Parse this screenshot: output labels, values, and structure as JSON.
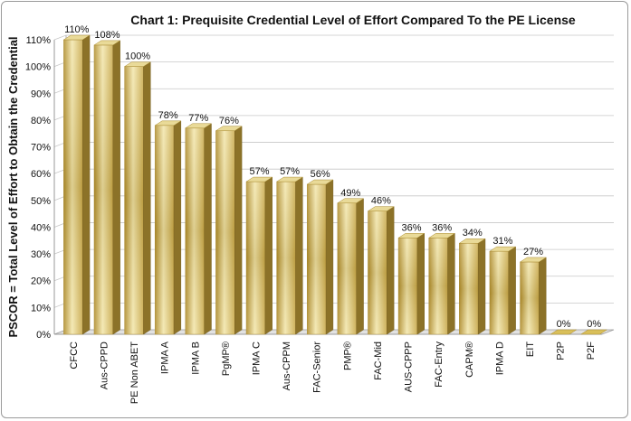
{
  "chart_data": {
    "type": "bar",
    "title": "Chart 1: Prequisite Credential Level of Effort Compared  To the PE License",
    "ylabel": "PSCOR = Total Level of Effort to Obtain the Credential",
    "xlabel": "",
    "ylim": [
      0,
      110
    ],
    "yticks": [
      "0%",
      "10%",
      "20%",
      "30%",
      "40%",
      "50%",
      "60%",
      "70%",
      "80%",
      "90%",
      "100%",
      "110%"
    ],
    "categories": [
      "CFCC",
      "Aus-CPPD",
      "PE Non ABET",
      "IPMA A",
      "IPMA B",
      "PgMP®",
      "IPMA C",
      "Aus-CPPM",
      "FAC-Senior",
      "PMP®",
      "FAC-Mid",
      "AUS-CPPP",
      "FAC-Entry",
      "CAPM®",
      "IPMA D",
      "EIT",
      "P2P",
      "P2F"
    ],
    "values": [
      110,
      108,
      100,
      78,
      77,
      76,
      57,
      57,
      56,
      49,
      46,
      36,
      36,
      34,
      31,
      27,
      0,
      0
    ],
    "data_labels": [
      "110%",
      "108%",
      "100%",
      "78%",
      "77%",
      "76%",
      "57%",
      "57%",
      "56%",
      "49%",
      "46%",
      "36%",
      "36%",
      "34%",
      "31%",
      "27%",
      "0%",
      "0%"
    ],
    "grid": true,
    "legend": "none",
    "colors": {
      "bar_light": "#f3e7ad",
      "bar_mid": "#d9bf5a",
      "bar_dark": "#b08d2c",
      "bar_side": "#8c7228",
      "bar_top": "#e9da98",
      "grid": "#c8c8c8",
      "wall": "#d4d4d4"
    }
  }
}
